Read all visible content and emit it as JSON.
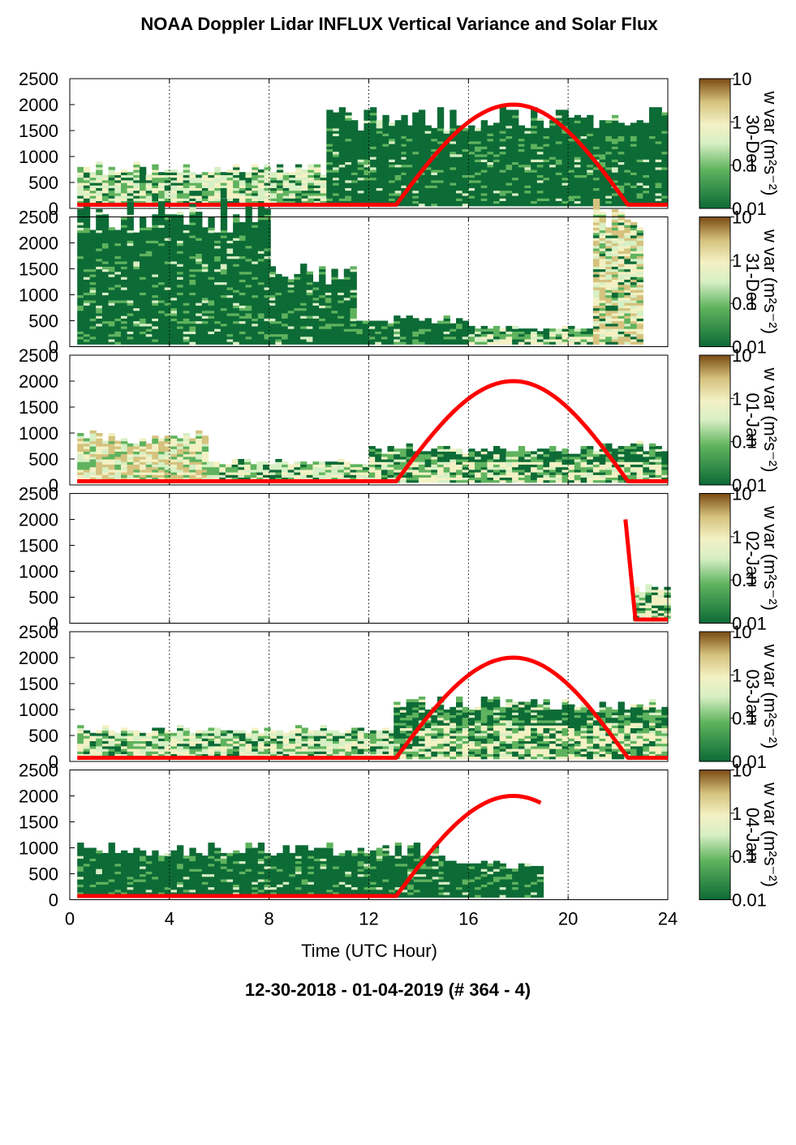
{
  "figure": {
    "title": "NOAA Doppler Lidar INFLUX Vertical Variance and Solar Flux",
    "footer": "12-30-2018 - 01-04-2019   (# 364 - 4)",
    "xlabel": "Time (UTC Hour)",
    "colorbar_label": "w var (m²s⁻²)",
    "colorbar_ticks": [
      "10",
      "1",
      "0.1",
      "0.01"
    ]
  },
  "colors": {
    "dark_green": "#0d6b36",
    "mid_green": "#5fb35e",
    "light_green": "#d7efc4",
    "cream": "#f3f1c4",
    "tan": "#d5c27e",
    "brown": "#7a4a12",
    "solar_line": "#ff0000"
  },
  "chart_data": [
    {
      "type": "heatmap",
      "panel_label": "30-Dec",
      "xlim": [
        0,
        24
      ],
      "ylim": [
        0,
        2500
      ],
      "xticks": [
        0,
        4,
        8,
        12,
        16,
        20,
        24
      ],
      "yticks": [
        0,
        500,
        1000,
        1500,
        2000,
        2500
      ],
      "zlabel": "w var (m²s⁻²)",
      "zscale": "log",
      "zlim": [
        0.01,
        10
      ],
      "coverage": [
        {
          "start": 0.3,
          "end": 10.3,
          "top": 750,
          "level": "low"
        },
        {
          "start": 10.3,
          "end": 13.5,
          "top": 1700,
          "level": "dark"
        },
        {
          "start": 13.5,
          "end": 24.0,
          "top": 1750,
          "level": "dark"
        }
      ],
      "solar": {
        "start": 13.1,
        "end": 22.4,
        "peak_hour": 17.8,
        "peak": 2000,
        "baseline": 70,
        "night_start": 0.3,
        "night_end": 24.0
      }
    },
    {
      "type": "heatmap",
      "panel_label": "31-Dec",
      "xlim": [
        0,
        24
      ],
      "ylim": [
        0,
        2500
      ],
      "xticks": [
        0,
        4,
        8,
        12,
        16,
        20,
        24
      ],
      "yticks": [
        0,
        500,
        1000,
        1500,
        2000,
        2500
      ],
      "zlabel": "w var (m²s⁻²)",
      "zscale": "log",
      "zlim": [
        0.01,
        10
      ],
      "coverage": [
        {
          "start": 0.3,
          "end": 8.0,
          "top": 2450,
          "level": "dark"
        },
        {
          "start": 8.0,
          "end": 11.5,
          "top": 1400,
          "level": "dark"
        },
        {
          "start": 11.5,
          "end": 16.0,
          "top": 500,
          "level": "dark"
        },
        {
          "start": 16.0,
          "end": 21.0,
          "top": 350,
          "level": "mixed"
        },
        {
          "start": 21.0,
          "end": 22.9,
          "top": 2500,
          "level": "bright"
        }
      ],
      "solar": null
    },
    {
      "type": "heatmap",
      "panel_label": "01-Jan",
      "xlim": [
        0,
        24
      ],
      "ylim": [
        0,
        2500
      ],
      "xticks": [
        0,
        4,
        8,
        12,
        16,
        20,
        24
      ],
      "yticks": [
        0,
        500,
        1000,
        1500,
        2000,
        2500
      ],
      "zlabel": "w var (m²s⁻²)",
      "zscale": "log",
      "zlim": [
        0.01,
        10
      ],
      "coverage": [
        {
          "start": 0.3,
          "end": 5.5,
          "top": 900,
          "level": "high"
        },
        {
          "start": 5.5,
          "end": 12.0,
          "top": 420,
          "level": "low"
        },
        {
          "start": 12.0,
          "end": 24.0,
          "top": 700,
          "level": "mixed"
        }
      ],
      "solar": {
        "start": 13.1,
        "end": 22.4,
        "peak_hour": 17.8,
        "peak": 2000,
        "baseline": 70,
        "night_start": 0.3,
        "night_end": 24.0
      }
    },
    {
      "type": "heatmap",
      "panel_label": "02-Jan",
      "xlim": [
        0,
        24
      ],
      "ylim": [
        0,
        2500
      ],
      "xticks": [
        0,
        4,
        8,
        12,
        16,
        20,
        24
      ],
      "yticks": [
        0,
        500,
        1000,
        1500,
        2000,
        2500
      ],
      "zlabel": "w var (m²s⁻²)",
      "zscale": "log",
      "zlim": [
        0.01,
        10
      ],
      "coverage": [
        {
          "start": 22.6,
          "end": 24.0,
          "top": 620,
          "level": "low"
        }
      ],
      "solar": {
        "segment": [
          [
            22.3,
            2000
          ],
          [
            22.7,
            70
          ],
          [
            24.0,
            70
          ]
        ]
      }
    },
    {
      "type": "heatmap",
      "panel_label": "03-Jan",
      "xlim": [
        0,
        24
      ],
      "ylim": [
        0,
        2500
      ],
      "xticks": [
        0,
        4,
        8,
        12,
        16,
        20,
        24
      ],
      "yticks": [
        0,
        500,
        1000,
        1500,
        2000,
        2500
      ],
      "zlabel": "w var (m²s⁻²)",
      "zscale": "log",
      "zlim": [
        0.01,
        10
      ],
      "coverage": [
        {
          "start": 0.3,
          "end": 13.0,
          "top": 600,
          "level": "low"
        },
        {
          "start": 13.0,
          "end": 24.0,
          "top": 1100,
          "level": "mixed"
        }
      ],
      "solar": {
        "start": 13.1,
        "end": 22.4,
        "peak_hour": 17.8,
        "peak": 2000,
        "baseline": 70,
        "night_start": 0.3,
        "night_end": 24.0
      }
    },
    {
      "type": "heatmap",
      "panel_label": "04-Jan",
      "xlim": [
        0,
        24
      ],
      "ylim": [
        0,
        2500
      ],
      "xticks": [
        0,
        4,
        8,
        12,
        16,
        20,
        24
      ],
      "yticks": [
        0,
        500,
        1000,
        1500,
        2000,
        2500
      ],
      "zlabel": "w var (m²s⁻²)",
      "zscale": "log",
      "zlim": [
        0.01,
        10
      ],
      "coverage": [
        {
          "start": 0.3,
          "end": 15.0,
          "top": 950,
          "level": "dark"
        },
        {
          "start": 15.0,
          "end": 18.9,
          "top": 650,
          "level": "dark"
        }
      ],
      "solar": {
        "start": 13.1,
        "end": 22.4,
        "peak_hour": 17.8,
        "peak": 2000,
        "baseline": 70,
        "night_start": 0.3,
        "night_end": 18.9
      }
    }
  ]
}
